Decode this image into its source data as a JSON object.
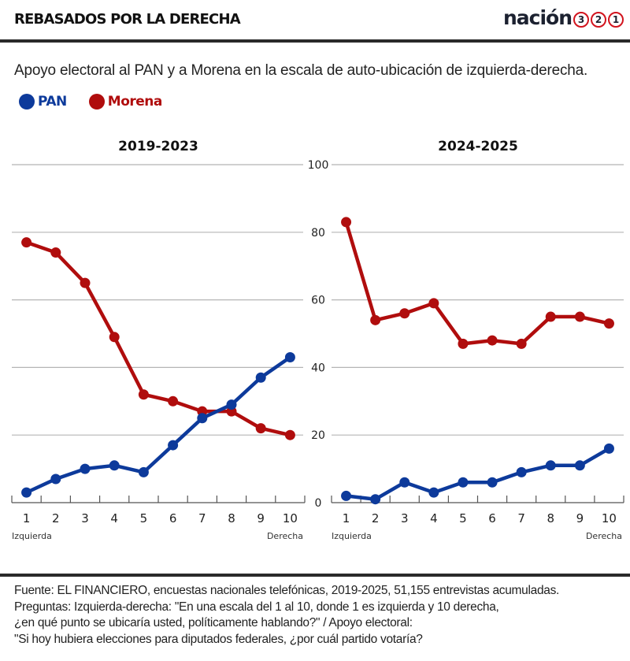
{
  "header": {
    "title": "REBASADOS POR LA DERECHA",
    "brand_word": "nación",
    "brand_numbers": [
      "3",
      "2",
      "1"
    ]
  },
  "subtitle": "Apoyo electoral al PAN y a Morena en la escala de auto-ubicación de izquierda-derecha.",
  "legend": [
    {
      "label": "PAN",
      "color": "#0d3a9b"
    },
    {
      "label": "Morena",
      "color": "#b00d0d"
    }
  ],
  "chart_data": [
    {
      "type": "line",
      "title": "2019-2023",
      "x": [
        1,
        2,
        3,
        4,
        5,
        6,
        7,
        8,
        9,
        10
      ],
      "xlabel_left": "Izquierda",
      "xlabel_right": "Derecha",
      "ylim": [
        0,
        100
      ],
      "yticks": [
        0,
        20,
        40,
        60,
        80,
        100
      ],
      "grid": true,
      "series": [
        {
          "name": "PAN",
          "color": "#0d3a9b",
          "values": [
            3,
            7,
            10,
            11,
            9,
            17,
            25,
            29,
            37,
            43
          ]
        },
        {
          "name": "Morena",
          "color": "#b00d0d",
          "values": [
            77,
            74,
            65,
            49,
            32,
            30,
            27,
            27,
            22,
            20
          ]
        }
      ]
    },
    {
      "type": "line",
      "title": "2024-2025",
      "x": [
        1,
        2,
        3,
        4,
        5,
        6,
        7,
        8,
        9,
        10
      ],
      "xlabel_left": "Izquierda",
      "xlabel_right": "Derecha",
      "ylim": [
        0,
        100
      ],
      "yticks": [
        0,
        20,
        40,
        60,
        80,
        100
      ],
      "grid": true,
      "series": [
        {
          "name": "PAN",
          "color": "#0d3a9b",
          "values": [
            2,
            1,
            6,
            3,
            6,
            6,
            9,
            11,
            11,
            16
          ]
        },
        {
          "name": "Morena",
          "color": "#b00d0d",
          "values": [
            83,
            54,
            56,
            59,
            47,
            48,
            47,
            55,
            55,
            53
          ]
        }
      ]
    }
  ],
  "footer": {
    "lines": [
      "Fuente: EL FINANCIERO, encuestas nacionales telefónicas, 2019-2025, 51,155 entrevistas acumuladas.",
      "Preguntas: Izquierda-derecha: \"En una escala del 1 al 10, donde 1 es izquierda y 10 derecha,",
      "¿en qué punto se ubicaría usted, políticamente hablando?\" / Apoyo electoral:",
      "\"Si hoy hubiera elecciones para diputados federales, ¿por cuál partido votaría?"
    ]
  }
}
